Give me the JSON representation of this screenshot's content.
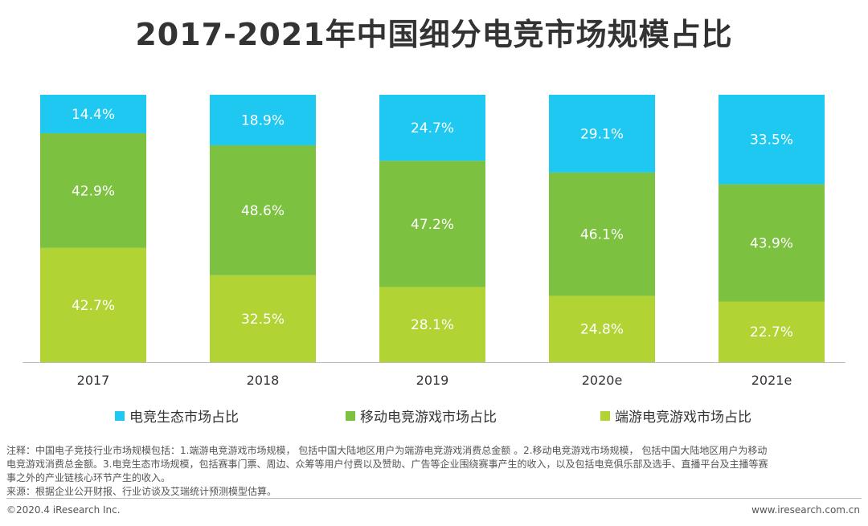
{
  "chart_data": {
    "type": "bar",
    "stacked": true,
    "title": "2017-2021年中国细分电竞市场规模占比",
    "categories": [
      "2017",
      "2018",
      "2019",
      "2020e",
      "2021e"
    ],
    "series": [
      {
        "name": "端游电竞游戏市场占比",
        "color": "#b1d334",
        "values": [
          42.7,
          32.5,
          28.1,
          24.8,
          22.7
        ],
        "labels": [
          "42.7%",
          "32.5%",
          "28.1%",
          "24.8%",
          "22.7%"
        ]
      },
      {
        "name": "移动电竞游戏市场占比",
        "color": "#7cc13f",
        "values": [
          42.9,
          48.6,
          47.2,
          46.1,
          43.9
        ],
        "labels": [
          "42.9%",
          "48.6%",
          "47.2%",
          "46.1%",
          "43.9%"
        ]
      },
      {
        "name": "电竞生态市场占比",
        "color": "#1ec8f0",
        "values": [
          14.4,
          18.9,
          24.7,
          29.1,
          33.5
        ],
        "labels": [
          "14.4%",
          "18.9%",
          "24.7%",
          "29.1%",
          "33.5%"
        ]
      }
    ],
    "ylim": [
      0,
      100
    ],
    "legend_order": [
      "电竞生态市场占比",
      "移动电竞游戏市场占比",
      "端游电竞游戏市场占比"
    ],
    "legend_position": "bottom"
  },
  "notes": {
    "line1": "注释：中国电子竞技行业市场规模包括：1.端游电竞游戏市场规模， 包括中国大陆地区用户为端游电竞游戏消费总金额 。2.移动电竞游戏市场规模， 包括中国大陆地区用户为移动",
    "line2": "电竞游戏消费总金额。3.电竞生态市场规模，包括赛事门票、周边、众筹等用户付费以及赞助、广告等企业围绕赛事产生的收入，以及包括电竞俱乐部及选手、直播平台及主播等赛",
    "line3": "事之外的产业链核心环节产生的收入。",
    "source": "来源：根据企业公开财报、行业访谈及艾瑞统计预测模型估算。"
  },
  "footer": {
    "copyright": "©2020.4 iResearch Inc.",
    "website": "www.iresearch.com.cn"
  }
}
